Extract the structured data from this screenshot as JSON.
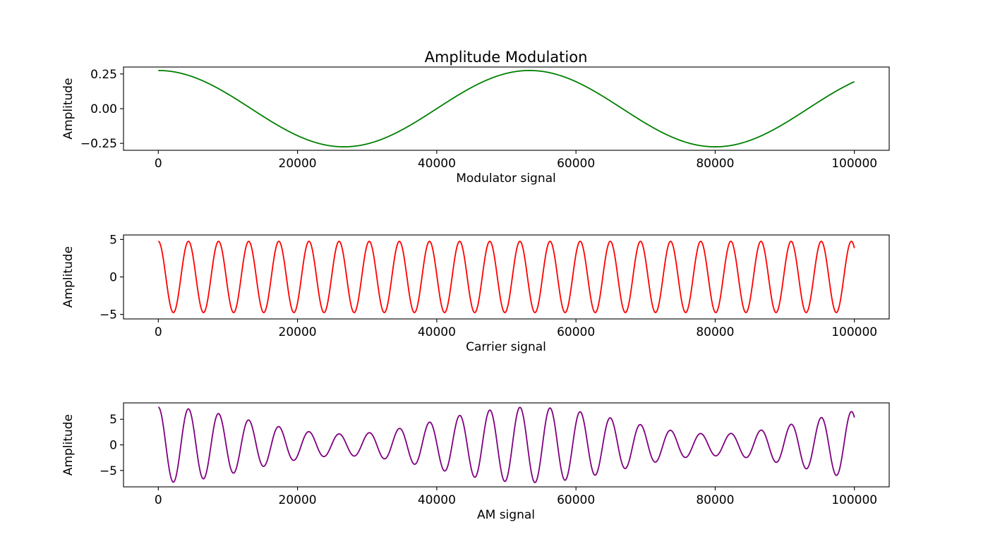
{
  "chart_data": [
    {
      "type": "line",
      "title": "Amplitude Modulation",
      "xlabel": "Modulator signal",
      "ylabel": "Amplitude",
      "xlim": [
        -5000,
        105000
      ],
      "ylim": [
        -0.3,
        0.3
      ],
      "xticks": [
        0,
        20000,
        40000,
        60000,
        80000,
        100000
      ],
      "xtick_labels": [
        "0",
        "20000",
        "40000",
        "60000",
        "80000",
        "100000"
      ],
      "yticks": [
        -0.25,
        0,
        0.25
      ],
      "ytick_labels": [
        "−0.25",
        "0.00",
        "0.25"
      ],
      "grid": false,
      "color": "#008000",
      "series": [
        {
          "x_range": [
            0,
            100000
          ],
          "signal": "cos",
          "amplitude": 0.275,
          "cycles": 1.875
        }
      ]
    },
    {
      "type": "line",
      "title": "",
      "xlabel": "Carrier signal",
      "ylabel": "Amplitude",
      "xlim": [
        -5000,
        105000
      ],
      "ylim": [
        -5.6,
        5.6
      ],
      "xticks": [
        0,
        20000,
        40000,
        60000,
        80000,
        100000
      ],
      "xtick_labels": [
        "0",
        "20000",
        "40000",
        "60000",
        "80000",
        "100000"
      ],
      "yticks": [
        -5,
        0,
        5
      ],
      "ytick_labels": [
        "−5",
        "0",
        "5"
      ],
      "grid": false,
      "color": "#ff0000",
      "series": [
        {
          "x_range": [
            0,
            100000
          ],
          "signal": "cos",
          "amplitude": 4.75,
          "cycles": 23.1
        }
      ]
    },
    {
      "type": "line",
      "title": "",
      "xlabel": "AM signal",
      "ylabel": "Amplitude",
      "xlim": [
        -5000,
        105000
      ],
      "ylim": [
        -8.2,
        8.2
      ],
      "xticks": [
        0,
        20000,
        40000,
        60000,
        80000,
        100000
      ],
      "xtick_labels": [
        "0",
        "20000",
        "40000",
        "60000",
        "80000",
        "100000"
      ],
      "yticks": [
        -5,
        0,
        5
      ],
      "ytick_labels": [
        "−5",
        "0",
        "5"
      ],
      "grid": false,
      "color": "#800080",
      "series": [
        {
          "x_range": [
            0,
            100000
          ],
          "signal": "am",
          "carrier_amplitude": 4.75,
          "carrier_cycles": 23.1,
          "modulator_amplitude": 0.275,
          "modulator_cycles": 1.875,
          "modulation_gain": 2
        }
      ]
    }
  ]
}
